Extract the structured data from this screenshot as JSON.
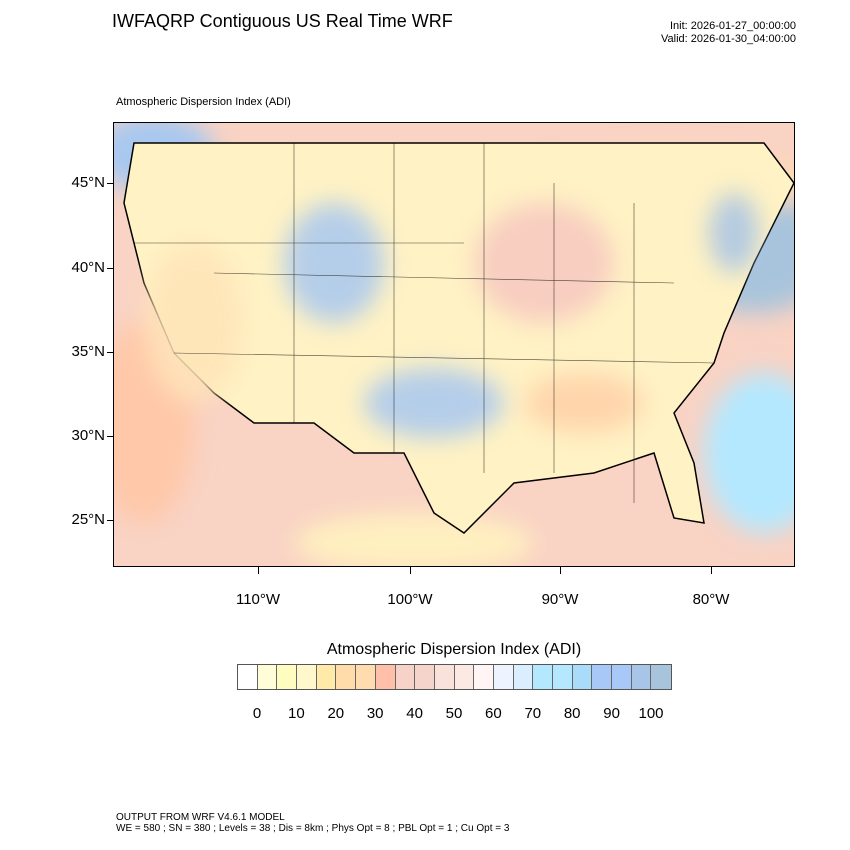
{
  "header": {
    "title": "IWFAQRP Contiguous US Real Time WRF",
    "init": "Init: 2026-01-27_00:00:00",
    "valid": "Valid: 2026-01-30_04:00:00"
  },
  "map": {
    "field_label": "Atmospheric Dispersion Index   (ADI)",
    "lat_labels": [
      "45°N",
      "40°N",
      "35°N",
      "30°N",
      "25°N"
    ],
    "lon_labels": [
      "110°W",
      "100°W",
      "90°W",
      "80°W"
    ],
    "ocean_color": "#a8c4dc",
    "land_color": "#ffdcb0"
  },
  "colorbar": {
    "title": "Atmospheric Dispersion Index  (ADI)",
    "labels": [
      "0",
      "10",
      "20",
      "30",
      "40",
      "50",
      "60",
      "70",
      "80",
      "90",
      "100"
    ],
    "colors": [
      "#ffffff",
      "#fffdd8",
      "#fffcc0",
      "#fff8cc",
      "#ffeaa8",
      "#ffdcaa",
      "#ffdcb0",
      "#ffbfa8",
      "#f7d2c8",
      "#f5d4cc",
      "#f9e2da",
      "#fde9e4",
      "#fff5f5",
      "#eef4ff",
      "#dbeeff",
      "#b3e8ff",
      "#b5e8ff",
      "#a8dcf8",
      "#a8c8f8",
      "#a8c8fa",
      "#a8c4e6",
      "#a8c4dc"
    ]
  },
  "footer": {
    "line1": "OUTPUT FROM WRF V4.6.1 MODEL",
    "line2": "WE = 580 ; SN = 380 ; Levels = 38 ; Dis = 8km ; Phys Opt = 8 ; PBL Opt = 1 ; Cu Opt = 3"
  }
}
